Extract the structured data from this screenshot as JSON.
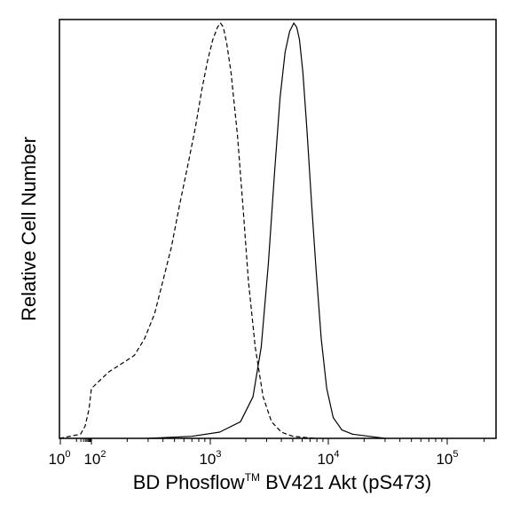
{
  "chart_data": {
    "type": "line",
    "title": "",
    "xlabel": {
      "prefix": "BD Phosflow",
      "trademark": "TM",
      "suffix": " BV421 Akt (pS473)"
    },
    "ylabel": "Relative Cell Number",
    "x_scale": "biexponential",
    "xlim": [
      0,
      250000
    ],
    "ylim": [
      0,
      1
    ],
    "grid": false,
    "legend": "none",
    "x_ticks": [
      {
        "base": "10",
        "exp": "0",
        "value": 1
      },
      {
        "base": "10",
        "exp": "2",
        "value": 100
      },
      {
        "base": "10",
        "exp": "3",
        "value": 1000
      },
      {
        "base": "10",
        "exp": "4",
        "value": 10000
      },
      {
        "base": "10",
        "exp": "5",
        "value": 100000
      }
    ],
    "series": [
      {
        "style": "dashed",
        "color": "#000000",
        "x": [
          0,
          20,
          40,
          70,
          100,
          140,
          180,
          230,
          280,
          340,
          400,
          470,
          550,
          650,
          750,
          850,
          950,
          1050,
          1150,
          1220,
          1290,
          1380,
          1500,
          1700,
          1900,
          2100,
          2400,
          2800,
          3300,
          4000,
          5000,
          6500,
          8000
        ],
        "y": [
          0.0,
          0.01,
          0.03,
          0.07,
          0.12,
          0.16,
          0.18,
          0.2,
          0.24,
          0.3,
          0.38,
          0.46,
          0.56,
          0.66,
          0.75,
          0.84,
          0.91,
          0.96,
          0.99,
          1.0,
          0.99,
          0.95,
          0.88,
          0.73,
          0.55,
          0.38,
          0.22,
          0.1,
          0.04,
          0.015,
          0.005,
          0.002,
          0.0
        ]
      },
      {
        "style": "solid",
        "color": "#000000",
        "x": [
          300,
          700,
          1200,
          1800,
          2300,
          2700,
          3100,
          3500,
          3900,
          4300,
          4700,
          5100,
          5400,
          5700,
          6100,
          6600,
          7200,
          7900,
          8700,
          9700,
          11000,
          13000,
          16000,
          22000,
          30000
        ],
        "y": [
          0.0,
          0.005,
          0.015,
          0.04,
          0.1,
          0.22,
          0.42,
          0.64,
          0.82,
          0.93,
          0.98,
          1.0,
          0.99,
          0.96,
          0.88,
          0.74,
          0.57,
          0.4,
          0.24,
          0.12,
          0.05,
          0.02,
          0.01,
          0.005,
          0.0
        ]
      }
    ]
  }
}
